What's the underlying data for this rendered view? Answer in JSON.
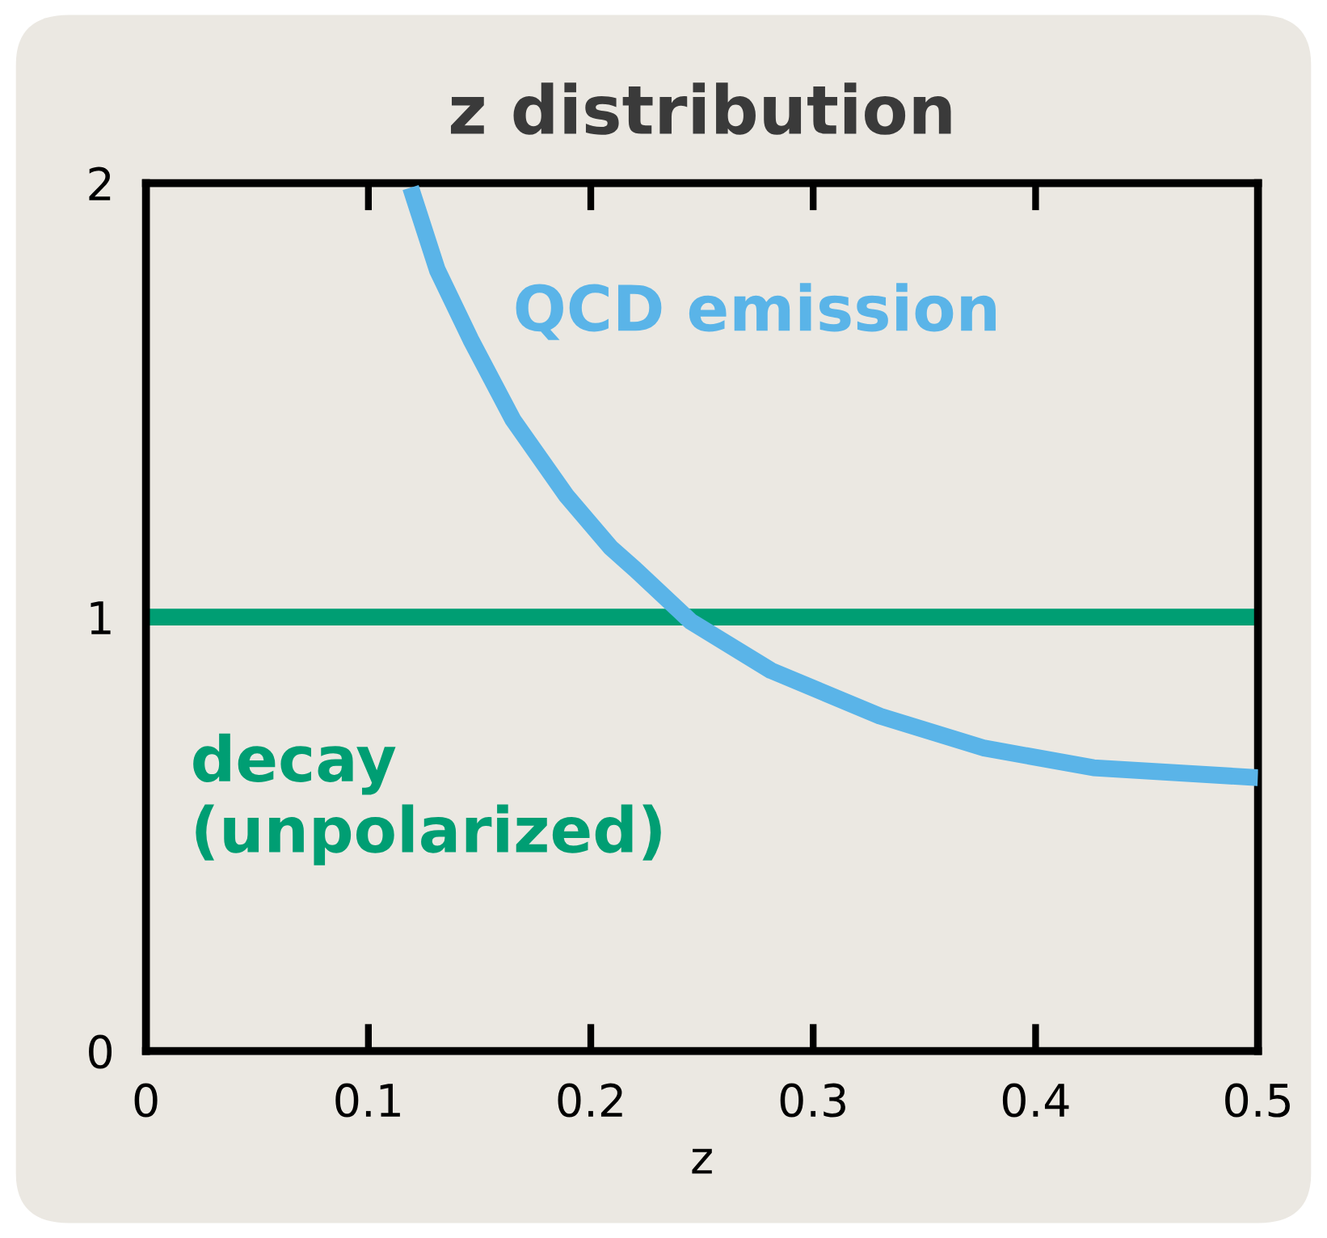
{
  "chart_data": {
    "type": "line",
    "title": "z distribution",
    "xlabel": "z",
    "xlim": [
      0,
      0.5
    ],
    "xticks": [
      0,
      0.1,
      0.2,
      0.3,
      0.4,
      0.5
    ],
    "ylim": [
      0,
      2
    ],
    "yticks": [
      0,
      1,
      2
    ],
    "grid": false,
    "legend": false,
    "marker": "none",
    "line_style": "solid",
    "series": [
      {
        "name": "QCD emission",
        "color": "#5ab4e8",
        "x": [
          0.119,
          0.131,
          0.146,
          0.165,
          0.189,
          0.209,
          0.22,
          0.245,
          0.281,
          0.33,
          0.377,
          0.426,
          0.5
        ],
        "values": [
          1.99,
          1.8,
          1.64,
          1.455,
          1.28,
          1.16,
          1.11,
          0.99,
          0.877,
          0.772,
          0.698,
          0.653,
          0.63
        ]
      },
      {
        "name": "decay\n(unpolarized)",
        "color": "#009e73",
        "x": [
          0,
          0.5
        ],
        "values": [
          1,
          1
        ]
      }
    ]
  }
}
